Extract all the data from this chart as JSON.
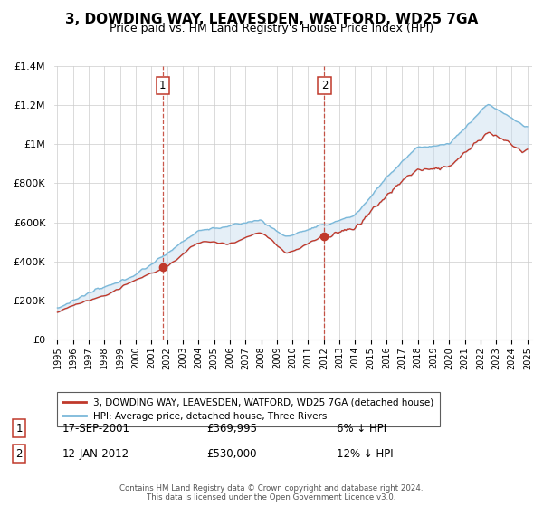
{
  "title": "3, DOWDING WAY, LEAVESDEN, WATFORD, WD25 7GA",
  "subtitle": "Price paid vs. HM Land Registry's House Price Index (HPI)",
  "title_fontsize": 11,
  "subtitle_fontsize": 9,
  "x_start_year": 1995,
  "x_end_year": 2025,
  "y_min": 0,
  "y_max": 1400000,
  "y_ticks": [
    0,
    200000,
    400000,
    600000,
    800000,
    1000000,
    1200000,
    1400000
  ],
  "y_tick_labels": [
    "£0",
    "£200K",
    "£400K",
    "£600K",
    "£800K",
    "£1M",
    "£1.2M",
    "£1.4M"
  ],
  "sale1_date": "17-SEP-2001",
  "sale1_price": 369995,
  "sale1_label": "1",
  "sale1_year": 2001.72,
  "sale1_hpi_pct": "6% ↓ HPI",
  "sale2_date": "12-JAN-2012",
  "sale2_price": 530000,
  "sale2_label": "2",
  "sale2_year": 2012.04,
  "sale2_hpi_pct": "12% ↓ HPI",
  "hpi_line_color": "#7ab8d9",
  "price_line_color": "#c0392b",
  "sale_marker_color": "#c0392b",
  "vline_color": "#c0392b",
  "fill_color": "#c6dcef",
  "legend_line1": "3, DOWDING WAY, LEAVESDEN, WATFORD, WD25 7GA (detached house)",
  "legend_line2": "HPI: Average price, detached house, Three Rivers",
  "footer": "Contains HM Land Registry data © Crown copyright and database right 2024.\nThis data is licensed under the Open Government Licence v3.0.",
  "background_color": "#ffffff",
  "grid_color": "#cccccc"
}
